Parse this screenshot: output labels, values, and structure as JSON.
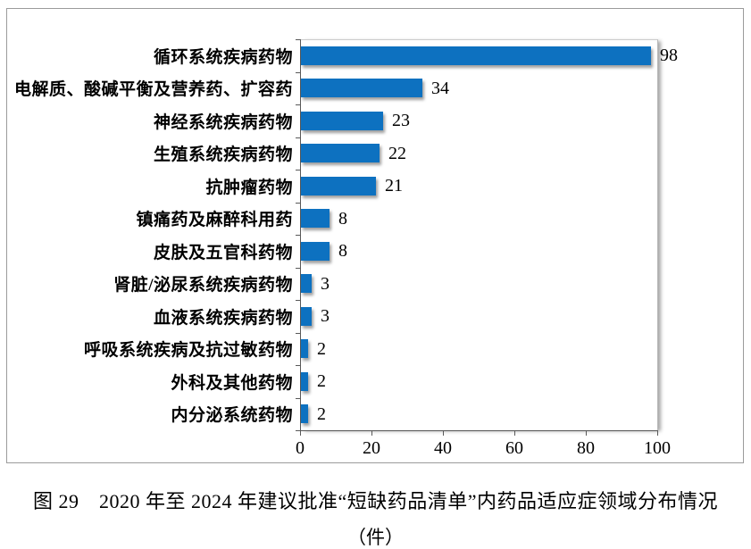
{
  "chart_data": {
    "type": "bar",
    "orientation": "horizontal",
    "categories": [
      "循环系统疾病药物",
      "电解质、酸碱平衡及营养药、扩容药",
      "神经系统疾病药物",
      "生殖系统疾病药物",
      "抗肿瘤药物",
      "镇痛药及麻醉科用药",
      "皮肤及五官科药物",
      "肾脏/泌尿系统疾病药物",
      "血液系统疾病药物",
      "呼吸系统疾病及抗过敏药物",
      "外科及其他药物",
      "内分泌系统药物"
    ],
    "values": [
      98,
      34,
      23,
      22,
      21,
      8,
      8,
      3,
      3,
      2,
      2,
      2
    ],
    "xlim": [
      0,
      100
    ],
    "xticks": [
      0,
      20,
      40,
      60,
      80,
      100
    ],
    "grid": "off",
    "legend": "none",
    "value_labels_shown": true,
    "bar_color": "#0d71c0"
  },
  "caption": {
    "line1": "图 29　2020 年至 2024 年建议批准“短缺药品清单”内药品适应症领域分布情况",
    "line2": "（件）"
  },
  "colors": {
    "bar": "#0d71c0",
    "axis": "#595959",
    "figure_border": "#9b9b9b",
    "plot_border": "#c0c0c0",
    "text": "#000000"
  }
}
